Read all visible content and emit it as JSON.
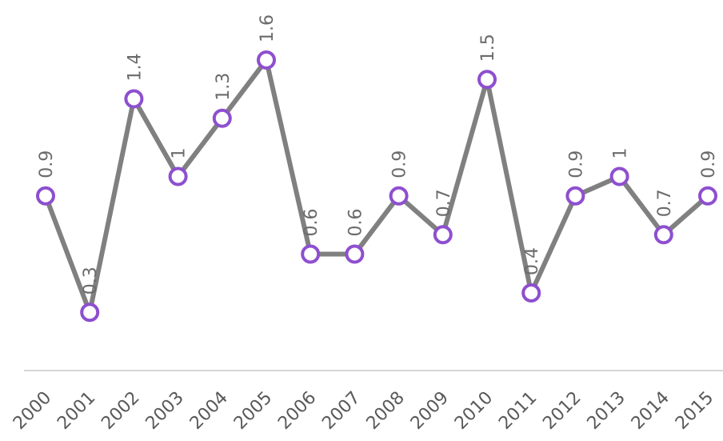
{
  "chart_data": {
    "type": "line",
    "categories": [
      "2000",
      "2001",
      "2002",
      "2003",
      "2004",
      "2005",
      "2006",
      "2007",
      "2008",
      "2009",
      "2010",
      "2011",
      "2012",
      "2013",
      "2014",
      "2015"
    ],
    "series": [
      {
        "values": [
          0.9,
          0.3,
          1.4,
          1,
          1.3,
          1.6,
          0.6,
          0.6,
          0.9,
          0.7,
          1.5,
          0.4,
          0.9,
          1,
          0.7,
          0.9
        ],
        "data_labels": [
          "0.9",
          "0.3",
          "1.4",
          "1",
          "1.3",
          "1.6",
          "0.6",
          "0.6",
          "0.9",
          "0.7",
          "1.5",
          "0.4",
          "0.9",
          "1",
          "0.7",
          "0.9"
        ]
      }
    ],
    "ylim": [
      0,
      1.6
    ],
    "grid": false,
    "legend": "none",
    "colors": {
      "line": "#808080",
      "marker": "#8e4fcf",
      "baseline": "#d6d6d6"
    }
  }
}
